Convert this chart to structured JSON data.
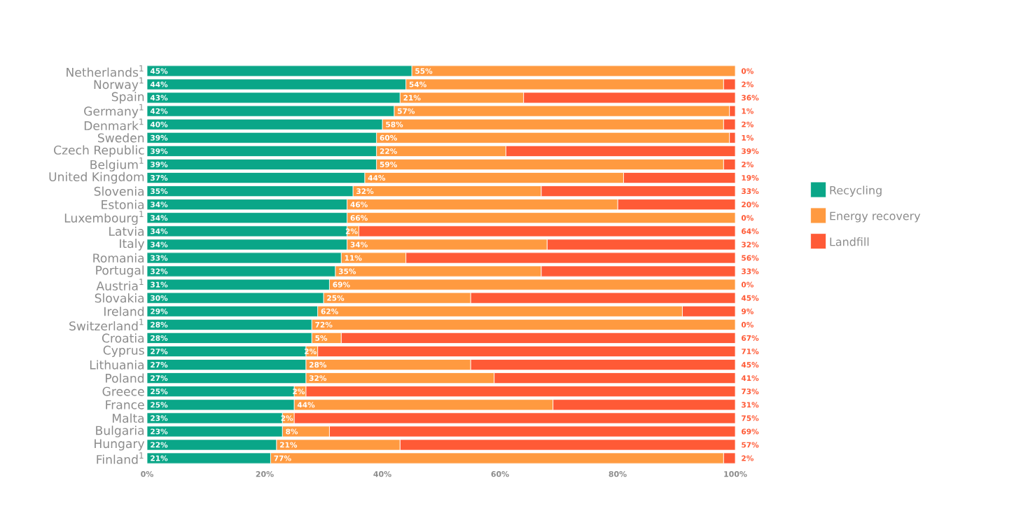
{
  "chart_data": {
    "type": "bar",
    "orientation": "horizontal",
    "stacked": true,
    "legend": "right",
    "categories": [
      "Netherlands$^{1}$",
      "Norway$^{1}$",
      "Spain",
      "Germany$^{1}$",
      "Denmark$^{1}$",
      "Sweden",
      "Czech Republic",
      "Belgium$^{1}$",
      "United Kingdom",
      "Slovenia",
      "Estonia",
      "Luxembourg$^{1}$",
      "Latvia",
      "Italy",
      "Romania",
      "Portugal",
      "Austria$^{1}$",
      "Slovakia",
      "Ireland",
      "Switzerland$^{1}$",
      "Croatia",
      "Cyprus",
      "Lithuania",
      "Poland",
      "Greece",
      "France",
      "Malta",
      "Bulgaria",
      "Hungary",
      "Finland$^{1}$"
    ],
    "xlim": [
      0,
      100
    ],
    "xticks": [
      {
        "value": 0,
        "label": "0%"
      },
      {
        "value": 20,
        "label": "20%"
      },
      {
        "value": 40,
        "label": "40%"
      },
      {
        "value": 60,
        "label": "60%"
      },
      {
        "value": 80,
        "label": "80%"
      },
      {
        "value": 100,
        "label": "100%"
      }
    ],
    "series": [
      {
        "name": "Recycling",
        "color": "#0aa688",
        "values": [
          45,
          44,
          43,
          42,
          40,
          39,
          39,
          39,
          37,
          35,
          34,
          34,
          34,
          34,
          33,
          32,
          31,
          30,
          29,
          28,
          28,
          27,
          27,
          27,
          25,
          25,
          23,
          23,
          22,
          21
        ],
        "value_labels": [
          "45%",
          "44%",
          "43%",
          "42%",
          "40%",
          "39%",
          "39%",
          "39%",
          "37%",
          "35%",
          "34%",
          "34%",
          "34%",
          "34%",
          "33%",
          "32%",
          "31%",
          "30%",
          "29%",
          "28%",
          "28%",
          "27%",
          "27%",
          "27%",
          "25%",
          "25%",
          "23%",
          "23%",
          "22%",
          "21%"
        ]
      },
      {
        "name": "Energy recovery",
        "color": "#ff9a40",
        "values": [
          55,
          54,
          21,
          57,
          58,
          60,
          22,
          59,
          44,
          32,
          46,
          66,
          2,
          34,
          11,
          35,
          69,
          25,
          62,
          72,
          5,
          2,
          28,
          32,
          2,
          44,
          2,
          8,
          21,
          77
        ],
        "value_labels": [
          "55%",
          "54%",
          "21%",
          "57%",
          "58%",
          "60%",
          "22%",
          "59%",
          "44%",
          "32%",
          "46%",
          "66%",
          "2%",
          "34%",
          "11%",
          "35%",
          "69%",
          "25%",
          "62%",
          "72%",
          "5%",
          "2%",
          "28%",
          "32%",
          "2%",
          "44%",
          "2%",
          "8%",
          "21%",
          "77%"
        ]
      },
      {
        "name": "Landfill",
        "color": "#ff5a36",
        "values": [
          0,
          2,
          36,
          1,
          2,
          1,
          39,
          2,
          19,
          33,
          20,
          0,
          64,
          32,
          56,
          33,
          0,
          45,
          9,
          0,
          67,
          71,
          45,
          41,
          73,
          31,
          75,
          69,
          57,
          2
        ],
        "value_labels": [
          "0%",
          "2%",
          "36%",
          "1%",
          "2%",
          "1%",
          "39%",
          "2%",
          "19%",
          "33%",
          "20%",
          "0%",
          "64%",
          "32%",
          "56%",
          "33%",
          "0%",
          "45%",
          "9%",
          "0%",
          "67%",
          "71%",
          "45%",
          "41%",
          "73%",
          "31%",
          "75%",
          "69%",
          "57%",
          "2%"
        ]
      }
    ]
  }
}
